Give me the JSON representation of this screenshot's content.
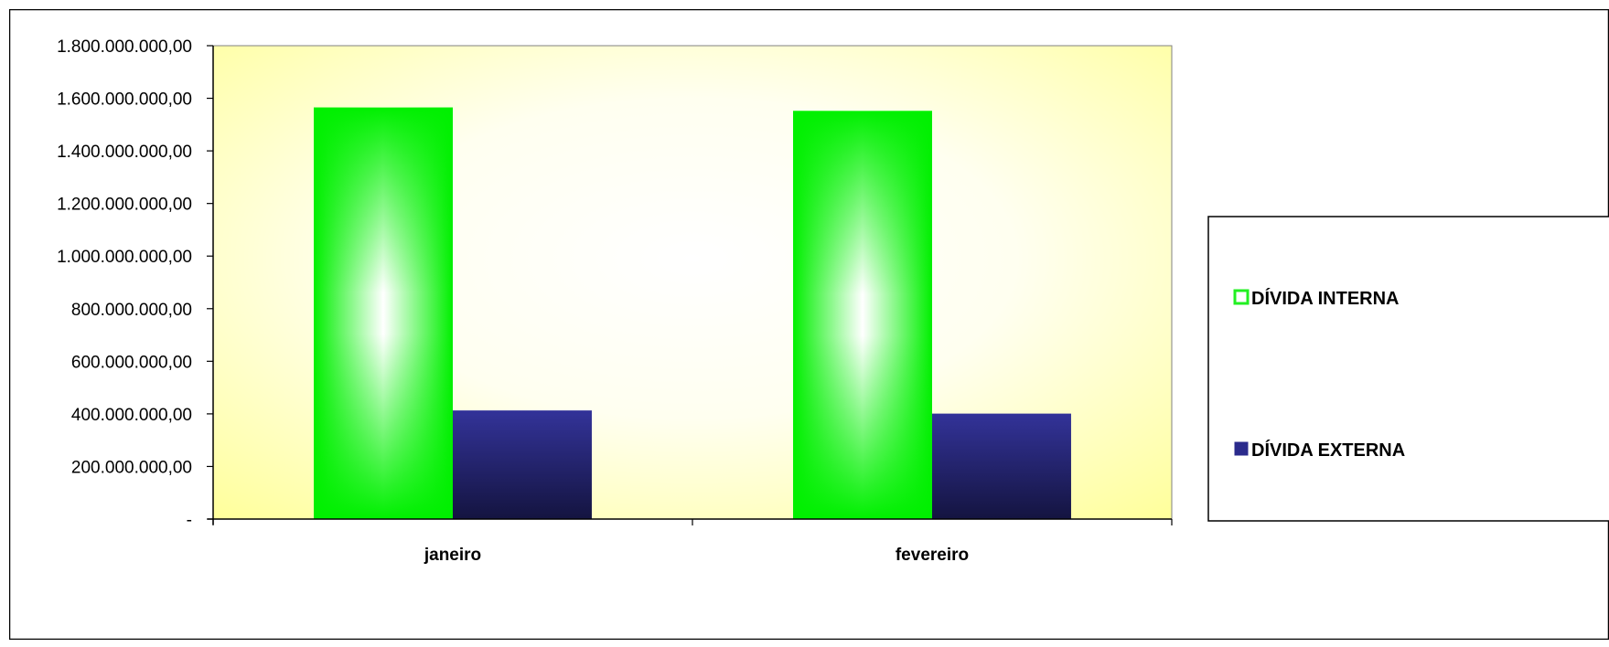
{
  "chart_data": {
    "type": "bar",
    "title": "",
    "xlabel": "",
    "ylabel": "",
    "categories": [
      "janeiro",
      "fevereiro"
    ],
    "series": [
      {
        "name": "DÍVIDA INTERNA",
        "values": [
          1565000000,
          1552000000
        ],
        "color": "#22f022"
      },
      {
        "name": "DÍVIDA EXTERNA",
        "values": [
          413000000,
          401000000
        ],
        "color": "#2b2b8c"
      }
    ],
    "ylim": [
      0,
      1800000000
    ],
    "yticks": [
      {
        "value": 0,
        "label": "-"
      },
      {
        "value": 200000000,
        "label": "200.000.000,00"
      },
      {
        "value": 400000000,
        "label": "400.000.000,00"
      },
      {
        "value": 600000000,
        "label": "600.000.000,00"
      },
      {
        "value": 800000000,
        "label": "800.000.000,00"
      },
      {
        "value": 1000000000,
        "label": "1.000.000.000,00"
      },
      {
        "value": 1200000000,
        "label": "1.200.000.000,00"
      },
      {
        "value": 1400000000,
        "label": "1.400.000.000,00"
      },
      {
        "value": 1600000000,
        "label": "1.600.000.000,00"
      },
      {
        "value": 1800000000,
        "label": "1.800.000.000,00"
      }
    ],
    "grid": false,
    "legend_position": "right",
    "plot_background": "#ffff99"
  }
}
